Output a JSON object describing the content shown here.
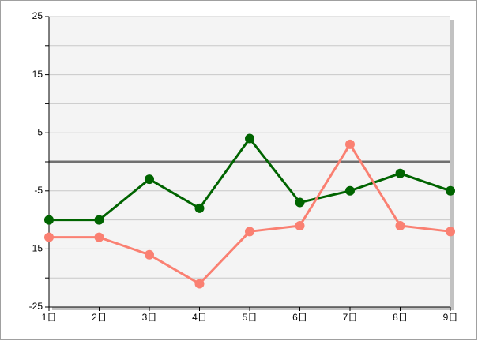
{
  "chart_data": {
    "type": "line",
    "categories": [
      "1日",
      "2日",
      "3日",
      "4日",
      "5日",
      "6日",
      "7日",
      "8日",
      "9日"
    ],
    "series": [
      {
        "color": "#006400",
        "values": [
          -10,
          -10,
          -3,
          -8,
          4,
          -7,
          -5,
          -2,
          -5
        ]
      },
      {
        "color": "#fa8072",
        "values": [
          -13,
          -13,
          -16,
          -21,
          -12,
          -11,
          3,
          -11,
          -12
        ]
      }
    ],
    "ylim": [
      -25,
      25
    ],
    "yticks": [
      -25,
      -15,
      -5,
      5,
      15,
      25
    ],
    "minor_yticks": [
      -20,
      -10,
      0,
      10,
      20
    ],
    "grid": true
  }
}
